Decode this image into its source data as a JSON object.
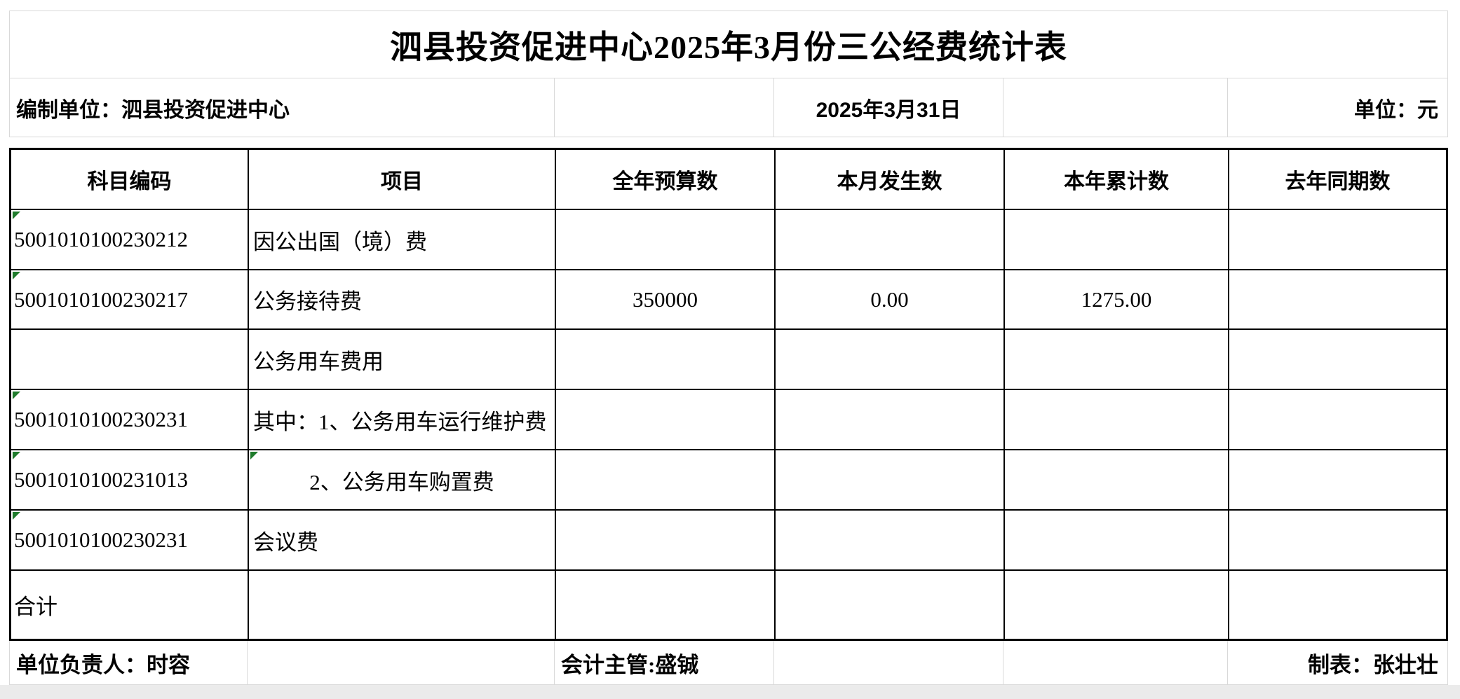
{
  "title": "泗县投资促进中心2025年3月份三公经费统计表",
  "meta": {
    "prepared_by": "编制单位：泗县投资促进中心",
    "date": "2025年3月31日",
    "unit": "单位：元"
  },
  "table": {
    "headers": [
      "科目编码",
      "项目",
      "全年预算数",
      "本月发生数",
      "本年累计数",
      "去年同期数"
    ],
    "rows": [
      {
        "code": "5001010100230212",
        "item": "因公出国（境）费",
        "budget": "",
        "month": "",
        "ytd": "",
        "prev": ""
      },
      {
        "code": "5001010100230217",
        "item": "公务接待费",
        "budget": "350000",
        "month": "0.00",
        "ytd": "1275.00",
        "prev": ""
      },
      {
        "code": "",
        "item": "公务用车费用",
        "budget": "",
        "month": "",
        "ytd": "",
        "prev": ""
      },
      {
        "code": "5001010100230231",
        "item": "其中：1、公务用车运行维护费",
        "budget": "",
        "month": "",
        "ytd": "",
        "prev": ""
      },
      {
        "code": "5001010100231013",
        "item": "2、公务用车购置费",
        "budget": "",
        "month": "",
        "ytd": "",
        "prev": ""
      },
      {
        "code": "5001010100230231",
        "item": "会议费",
        "budget": "",
        "month": "",
        "ytd": "",
        "prev": ""
      },
      {
        "code": "合计",
        "item": "",
        "budget": "",
        "month": "",
        "ytd": "",
        "prev": ""
      }
    ]
  },
  "footer": {
    "responsible": "单位负责人：时容",
    "accountant": "会计主管:盛铖",
    "preparer": "制表：张壮壮"
  },
  "colors": {
    "triangle_green": "#1f7b2c",
    "grid_gray": "#d9d9d9",
    "table_border": "#000000",
    "outside_strip": "#ebebeb"
  }
}
